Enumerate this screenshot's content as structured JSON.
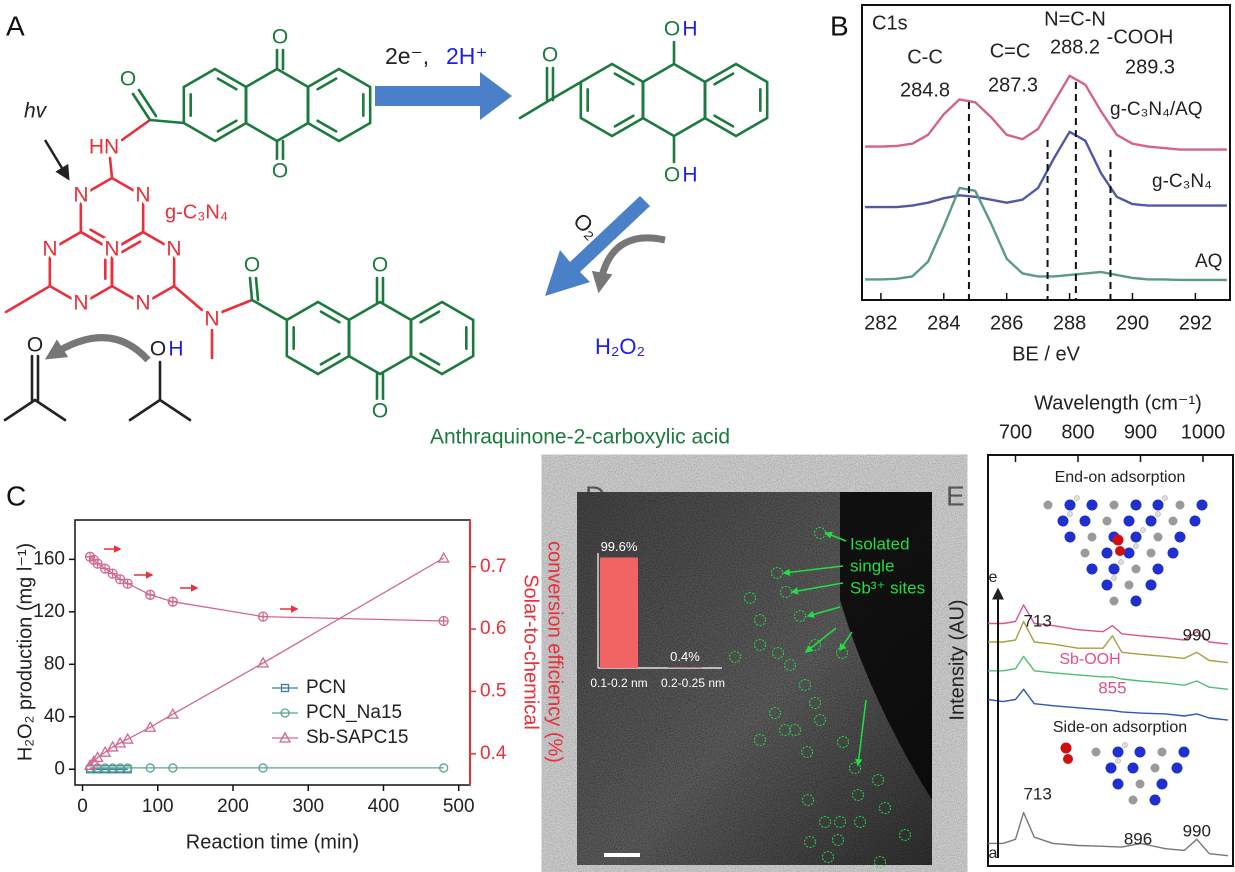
{
  "panel_labels": [
    "A",
    "B",
    "C",
    "D",
    "E"
  ],
  "scheme": {
    "hv": "hv",
    "reagents": [
      "2e⁻,",
      "2H⁺"
    ],
    "oxidant": "O₂",
    "product": "H₂O₂",
    "material": "g-C₃N₄",
    "caption": "Anthraquinone-2-carboxylic acid",
    "atoms": [
      "HN",
      "N",
      "N",
      "N",
      "N",
      "N",
      "N",
      "N",
      "N",
      "O",
      "O",
      "O",
      "O",
      "O",
      "O",
      "O",
      "O",
      "H",
      "O",
      "H",
      "O",
      "O",
      "H"
    ]
  },
  "image": {
    "label_lines": [
      "Isolated",
      "single",
      "Sb³⁺ sites"
    ]
  },
  "chart_data": [
    {
      "type": "line",
      "title": "C1s",
      "xlabel": "BE / eV",
      "xlim": [
        281.4,
        293.1
      ],
      "xticks": [
        282,
        284,
        286,
        288,
        290,
        292
      ],
      "ylim": [
        0,
        10
      ],
      "x": [
        281.5,
        282,
        282.5,
        283,
        283.5,
        284,
        284.5,
        285,
        285.5,
        286,
        286.5,
        287,
        287.5,
        288,
        288.5,
        289,
        289.5,
        290,
        290.5,
        291,
        291.5,
        292,
        292.5,
        293
      ],
      "series": [
        {
          "name": "g-C₃N₄/AQ",
          "color": "#d4628e",
          "values": [
            5.2,
            5.2,
            5.22,
            5.3,
            5.6,
            6.3,
            6.8,
            6.7,
            6.2,
            5.6,
            5.45,
            5.8,
            6.7,
            7.6,
            7.3,
            6.4,
            5.6,
            5.3,
            5.2,
            5.15,
            5.1,
            5.1,
            5.1,
            5.1
          ]
        },
        {
          "name": "g-C₃N₄",
          "color": "#5058a8",
          "values": [
            3.15,
            3.15,
            3.15,
            3.2,
            3.3,
            3.45,
            3.55,
            3.5,
            3.4,
            3.3,
            3.4,
            3.8,
            4.8,
            5.7,
            5.4,
            4.3,
            3.5,
            3.25,
            3.2,
            3.2,
            3.2,
            3.2,
            3.2,
            3.2
          ]
        },
        {
          "name": "AQ",
          "color": "#5a9a8a",
          "values": [
            0.7,
            0.7,
            0.72,
            0.8,
            1.3,
            2.5,
            3.8,
            3.7,
            2.6,
            1.4,
            0.9,
            0.8,
            0.8,
            0.85,
            0.9,
            0.95,
            0.85,
            0.75,
            0.7,
            0.7,
            0.68,
            0.68,
            0.68,
            0.68
          ]
        }
      ],
      "annotations": [
        {
          "label": "C-C",
          "value": 284.8
        },
        {
          "label": "C=C",
          "value": 287.3
        },
        {
          "label": "N=C-N",
          "value": 288.2
        },
        {
          "label": "-COOH",
          "value": 289.3
        }
      ]
    },
    {
      "type": "line",
      "xlabel": "Reaction time (min)",
      "ylabel": "H₂O₂ production (mg l⁻¹)",
      "y2label": [
        "Solar-to-chemical",
        "conversion efficiency (%)"
      ],
      "xlim": [
        -10,
        515
      ],
      "xticks": [
        0,
        100,
        200,
        300,
        400,
        500
      ],
      "ylim": [
        -12,
        190
      ],
      "yticks": [
        0,
        40,
        80,
        120,
        160
      ],
      "y2lim": [
        0.35,
        0.775
      ],
      "y2ticks": [
        0.4,
        0.5,
        0.6,
        0.7
      ],
      "y2color": "#e8303a",
      "series": [
        {
          "name": "PCN",
          "color": "#3a7ca5",
          "marker": "square",
          "x": [
            10,
            20,
            30,
            40,
            50,
            60
          ],
          "values": [
            0,
            0,
            0,
            0,
            0,
            0
          ]
        },
        {
          "name": "PCN_Na15",
          "color": "#5aa58a",
          "marker": "circle",
          "x": [
            10,
            20,
            30,
            40,
            50,
            60,
            90,
            120,
            240,
            480
          ],
          "values": [
            1,
            1,
            1,
            1,
            1,
            1,
            1,
            1,
            1,
            1
          ]
        },
        {
          "name": "Sb-SAPC15",
          "color": "#d06890",
          "marker": "triangle",
          "x": [
            10,
            15,
            20,
            30,
            40,
            50,
            60,
            90,
            120,
            240,
            480
          ],
          "values": [
            3,
            6,
            9,
            13,
            17,
            20,
            23,
            32,
            42,
            81,
            161
          ]
        },
        {
          "color": "#d06890",
          "marker": "circle-cross",
          "axis": "y2",
          "x": [
            10,
            15,
            20,
            30,
            40,
            50,
            60,
            90,
            120,
            240,
            480
          ],
          "values": [
            0.716,
            0.711,
            0.705,
            0.697,
            0.689,
            0.68,
            0.673,
            0.655,
            0.644,
            0.62,
            0.613
          ]
        }
      ]
    },
    {
      "type": "bar",
      "categories": [
        "0.1-0.2 nm",
        "0.2-0.25 nm"
      ],
      "values": [
        99.6,
        0.4
      ],
      "value_labels": [
        "99.6%",
        "0.4%"
      ],
      "ylim": [
        0,
        100
      ],
      "color": "#f26464"
    },
    {
      "type": "line",
      "xlabel": "Wavelength (cm⁻¹)",
      "ylabel": "Intensity (AU)",
      "xlim": [
        656,
        1048
      ],
      "xticks": [
        700,
        800,
        900,
        1000
      ],
      "ylim": [
        0,
        10
      ],
      "x": [
        656,
        680,
        700,
        713,
        730,
        760,
        800,
        840,
        855,
        870,
        900,
        940,
        970,
        990,
        1010,
        1040
      ],
      "series": [
        {
          "color": "#777777",
          "values": [
            0.55,
            0.55,
            0.65,
            1.3,
            0.7,
            0.55,
            0.5,
            0.48,
            0.47,
            0.46,
            0.55,
            0.42,
            0.38,
            0.65,
            0.3,
            0.25
          ]
        },
        {
          "color": "#2f55b8",
          "values": [
            4.05,
            4.0,
            4.05,
            4.3,
            3.95,
            3.9,
            3.85,
            3.8,
            3.78,
            3.75,
            3.72,
            3.7,
            3.65,
            3.7,
            3.6,
            3.55
          ]
        },
        {
          "color": "#4cc070",
          "values": [
            4.75,
            4.75,
            4.8,
            5.1,
            4.75,
            4.7,
            4.65,
            4.6,
            4.6,
            4.55,
            4.5,
            4.45,
            4.4,
            4.5,
            4.35,
            4.3
          ]
        },
        {
          "color": "#a8a040",
          "values": [
            5.45,
            5.45,
            5.5,
            5.95,
            5.45,
            5.4,
            5.3,
            5.3,
            5.6,
            5.2,
            5.15,
            5.1,
            5.05,
            5.2,
            5.0,
            4.95
          ]
        },
        {
          "color": "#e0508a",
          "values": [
            5.9,
            5.9,
            5.95,
            6.35,
            5.9,
            5.85,
            5.75,
            5.7,
            5.85,
            5.65,
            5.6,
            5.55,
            5.5,
            5.7,
            5.45,
            5.4
          ]
        }
      ],
      "trace_labels": [
        "a",
        "e"
      ],
      "peaks": [
        713,
        855,
        990,
        713,
        896,
        990
      ],
      "annotations": [
        "End-on adsorption",
        "Sb-OOH",
        "Side-on adsorption"
      ]
    }
  ]
}
